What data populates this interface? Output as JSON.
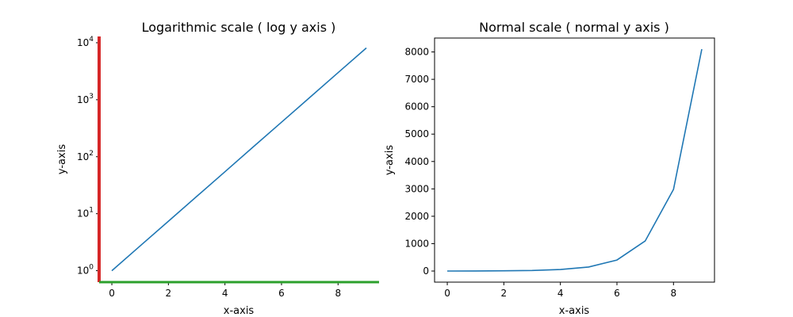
{
  "chart_data": [
    {
      "type": "line",
      "title": "Logarithmic scale ( log y axis )",
      "xlabel": "x-axis",
      "ylabel": "y-axis",
      "yscale": "log",
      "x": [
        0,
        1,
        2,
        3,
        4,
        5,
        6,
        7,
        8,
        9
      ],
      "series": [
        {
          "values": [
            1,
            2.718,
            7.389,
            20.09,
            54.6,
            148.4,
            403.4,
            1096.6,
            2981,
            8103
          ],
          "color": "#1f77b4"
        }
      ],
      "xlim": [
        -0.45,
        9.45
      ],
      "ylim": [
        0.63,
        12900
      ],
      "xticks": [
        0,
        2,
        4,
        6,
        8
      ],
      "xtick_labels": [
        "0",
        "2",
        "4",
        "6",
        "8"
      ],
      "yticks": [
        1,
        10,
        100,
        1000,
        10000
      ],
      "ytick_bases": [
        "10",
        "10",
        "10",
        "10",
        "10"
      ],
      "ytick_exps": [
        "0",
        "1",
        "2",
        "3",
        "4"
      ],
      "grid": false,
      "spines": {
        "left": "#d62728",
        "bottom": "#2ca02c",
        "top": "none",
        "right": "none"
      }
    },
    {
      "type": "line",
      "title": "Normal scale ( normal y axis )",
      "xlabel": "x-axis",
      "ylabel": "y-axis",
      "yscale": "linear",
      "x": [
        0,
        1,
        2,
        3,
        4,
        5,
        6,
        7,
        8,
        9
      ],
      "series": [
        {
          "values": [
            1,
            2.718,
            7.389,
            20.09,
            54.6,
            148.4,
            403.4,
            1096.6,
            2981,
            8103
          ],
          "color": "#1f77b4"
        }
      ],
      "xlim": [
        -0.45,
        9.45
      ],
      "ylim": [
        -405,
        8508
      ],
      "xticks": [
        0,
        2,
        4,
        6,
        8
      ],
      "xtick_labels": [
        "0",
        "2",
        "4",
        "6",
        "8"
      ],
      "yticks": [
        0,
        1000,
        2000,
        3000,
        4000,
        5000,
        6000,
        7000,
        8000
      ],
      "ytick_labels": [
        "0",
        "1000",
        "2000",
        "3000",
        "4000",
        "5000",
        "6000",
        "7000",
        "8000"
      ],
      "grid": false
    }
  ]
}
